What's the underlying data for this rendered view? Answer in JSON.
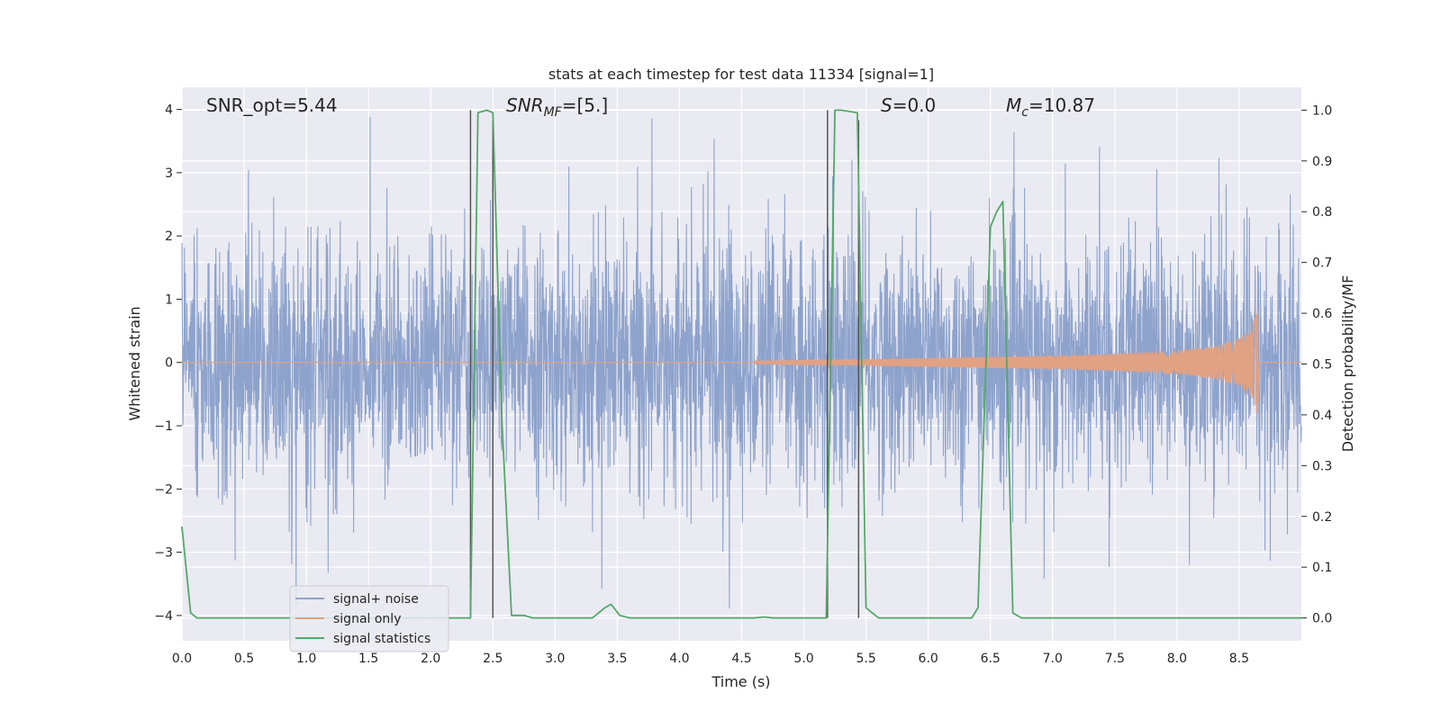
{
  "chart_data": {
    "type": "line",
    "title": "stats at each timestep for test data 11334 [signal=1]",
    "xlabel": "Time (s)",
    "ylabel_left": "Whitened strain",
    "ylabel_right": "Detection probability/MF",
    "xlim": [
      0,
      9
    ],
    "ylim_left": [
      -4.4,
      4.35
    ],
    "ylim_right": [
      -0.045,
      1.045
    ],
    "x_ticks": [
      "0.0",
      "0.5",
      "1.0",
      "1.5",
      "2.0",
      "2.5",
      "3.0",
      "3.5",
      "4.0",
      "4.5",
      "5.0",
      "5.5",
      "6.0",
      "6.5",
      "7.0",
      "7.5",
      "8.0",
      "8.5"
    ],
    "y_ticks_left": [
      "4",
      "3",
      "2",
      "1",
      "0",
      "−1",
      "−2",
      "−3",
      "−4"
    ],
    "y_ticks_right": [
      "1.0",
      "0.9",
      "0.8",
      "0.7",
      "0.6",
      "0.5",
      "0.4",
      "0.3",
      "0.2",
      "0.1",
      "0.0"
    ],
    "grid": true,
    "legend_position": "lower-left",
    "annotations": [
      {
        "main": "SNR_opt=5.44",
        "sub": "",
        "rest": "",
        "italic": false
      },
      {
        "main": "SNR",
        "sub": "MF",
        "rest": "=[5.]",
        "italic": true
      },
      {
        "main": "S",
        "sub": "",
        "rest": "=0.0",
        "italic": true
      },
      {
        "main": "M",
        "sub": "c",
        "rest": "=10.87",
        "italic": true
      }
    ],
    "series": [
      {
        "name": "signal+ noise",
        "axis": "left",
        "color": "#8ea3cc",
        "description_values": {
          "typical_range": [
            -2.0,
            2.0
          ],
          "peak_max": 3.95,
          "peak_min": -4.0
        }
      },
      {
        "name": "signal only",
        "axis": "left",
        "color": "#e1a183",
        "envelope": {
          "x": [
            4.6,
            5.0,
            5.5,
            6.0,
            6.5,
            7.0,
            7.5,
            8.0,
            8.3,
            8.5,
            8.6,
            8.65,
            8.66
          ],
          "amplitude": [
            0.02,
            0.04,
            0.05,
            0.07,
            0.09,
            0.11,
            0.14,
            0.19,
            0.26,
            0.38,
            0.55,
            0.85,
            0.0
          ]
        }
      },
      {
        "name": "signal statistics",
        "axis": "right",
        "color": "#55a868",
        "x": [
          0.0,
          0.07,
          0.12,
          0.3,
          1.0,
          2.0,
          2.32,
          2.38,
          2.45,
          2.5,
          2.57,
          2.65,
          2.75,
          2.82,
          3.0,
          3.3,
          3.4,
          3.45,
          3.52,
          3.6,
          4.0,
          4.6,
          4.68,
          4.75,
          5.0,
          5.18,
          5.25,
          5.3,
          5.43,
          5.5,
          5.6,
          6.0,
          6.35,
          6.4,
          6.5,
          6.55,
          6.6,
          6.68,
          6.75,
          7.0,
          8.0,
          9.0
        ],
        "y": [
          0.18,
          0.01,
          0.0,
          0.0,
          0.0,
          0.0,
          0.0,
          0.995,
          1.0,
          0.995,
          0.4,
          0.005,
          0.005,
          0.0,
          0.0,
          0.0,
          0.02,
          0.027,
          0.005,
          0.0,
          0.0,
          0.0,
          0.002,
          0.0,
          0.0,
          0.0,
          1.0,
          1.0,
          0.995,
          0.02,
          0.0,
          0.0,
          0.0,
          0.02,
          0.77,
          0.8,
          0.82,
          0.01,
          0.0,
          0.0,
          0.0,
          0.0
        ]
      }
    ],
    "vertical_markers": [
      {
        "x": 2.32,
        "y_top": 1.0,
        "y_bottom": 0.0
      },
      {
        "x": 2.5,
        "y_top": 0.98,
        "y_bottom": 0.0
      },
      {
        "x": 5.19,
        "y_top": 1.0,
        "y_bottom": 0.0
      },
      {
        "x": 5.44,
        "y_top": 0.98,
        "y_bottom": 0.0
      }
    ],
    "marker_color": "#555555",
    "style_colors": {
      "plot_background": "#eaeaf2",
      "grid": "#ffffff"
    }
  }
}
